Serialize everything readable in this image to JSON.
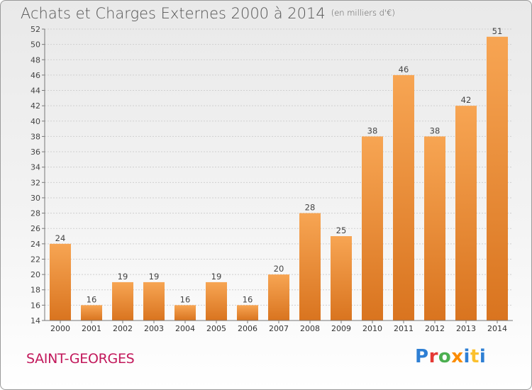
{
  "header": {
    "title": "Achats et Charges Externes 2000 à 2014",
    "subtitle": "(en milliers d'€)"
  },
  "footer": {
    "commune": "SAINT-GEORGES",
    "logo_text": "Proxiti",
    "logo_colors": [
      "#2e7fd4",
      "#e53935",
      "#4caf50",
      "#fb8c00",
      "#2e7fd4",
      "#fbc02d",
      "#2e7fd4"
    ]
  },
  "chart_data": {
    "type": "bar",
    "title": "Achats et Charges Externes 2000 à 2014",
    "subtitle": "(en milliers d'€)",
    "categories": [
      "2000",
      "2001",
      "2002",
      "2003",
      "2004",
      "2005",
      "2006",
      "2007",
      "2008",
      "2009",
      "2010",
      "2011",
      "2012",
      "2013",
      "2014"
    ],
    "values": [
      24,
      16,
      19,
      19,
      16,
      19,
      16,
      20,
      28,
      25,
      38,
      46,
      38,
      42,
      51
    ],
    "ylim": [
      14,
      52
    ],
    "yticks": [
      14,
      16,
      18,
      20,
      22,
      24,
      26,
      28,
      30,
      32,
      34,
      36,
      38,
      40,
      42,
      44,
      46,
      48,
      50,
      52
    ],
    "grid": true,
    "bar_color": "#f0913a",
    "xlabel": "",
    "ylabel": ""
  }
}
